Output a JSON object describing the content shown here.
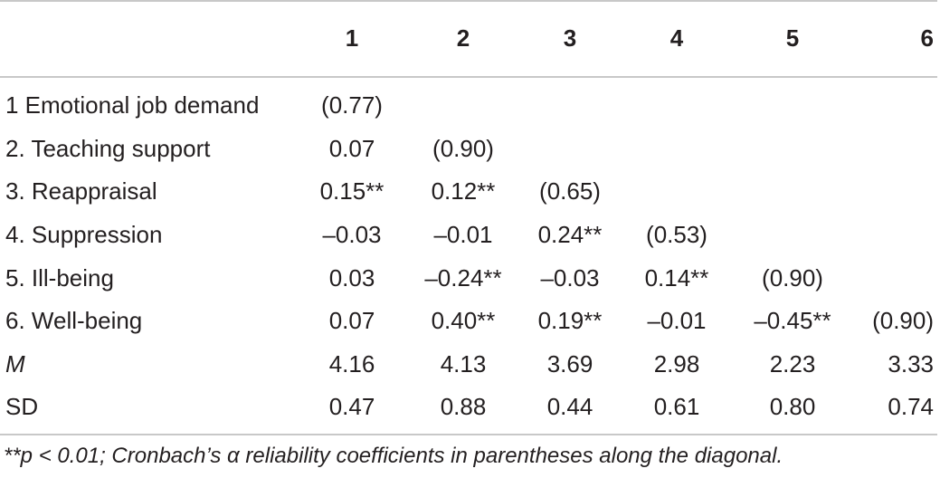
{
  "table": {
    "headers": [
      "",
      "1",
      "2",
      "3",
      "4",
      "5",
      "6"
    ],
    "rows": [
      {
        "label": "1 Emotional job demand",
        "values": [
          "(0.77)",
          "",
          "",
          "",
          "",
          ""
        ]
      },
      {
        "label": "2. Teaching support",
        "values": [
          "0.07",
          "(0.90)",
          "",
          "",
          "",
          ""
        ]
      },
      {
        "label": "3. Reappraisal",
        "values": [
          "0.15**",
          "0.12**",
          "(0.65)",
          "",
          "",
          ""
        ]
      },
      {
        "label": "4. Suppression",
        "values": [
          "–0.03",
          "–0.01",
          "0.24**",
          "(0.53)",
          "",
          ""
        ]
      },
      {
        "label": "5. Ill-being",
        "values": [
          "0.03",
          "–0.24**",
          "–0.03",
          "0.14**",
          "(0.90)",
          ""
        ]
      },
      {
        "label": "6. Well-being",
        "values": [
          "0.07",
          "0.40**",
          "0.19**",
          "–0.01",
          "–0.45**",
          "(0.90)"
        ]
      },
      {
        "label": "M",
        "values": [
          "4.16",
          "4.13",
          "3.69",
          "2.98",
          "2.23",
          "3.33"
        ]
      },
      {
        "label": "SD",
        "values": [
          "0.47",
          "0.88",
          "0.44",
          "0.61",
          "0.80",
          "0.74"
        ]
      }
    ]
  },
  "footnote": "**p < 0.01; Cronbach’s α reliability coefficients in parentheses along the diagonal."
}
